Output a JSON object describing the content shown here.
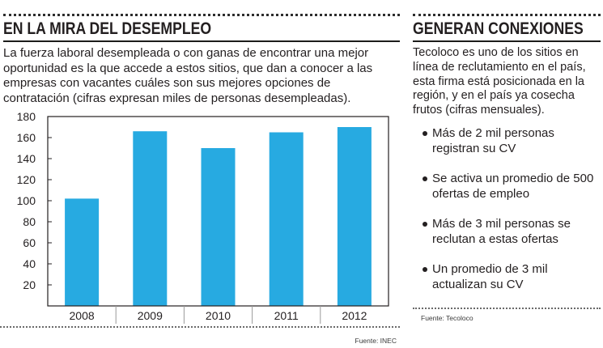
{
  "left_panel": {
    "title": "EN LA MIRA DEL DESEMPLEO",
    "intro": "La fuerza laboral desempleada o con ganas de encontrar una mejor oportunidad es la que accede a estos sitios, que dan a conocer a las empresas con vacantes cuáles son sus mejores opciones de contratación (cifras expresan miles de personas desempleadas).",
    "source": "Fuente: INEC"
  },
  "right_panel": {
    "title": "GENERAN CONEXIONES",
    "intro": "Tecoloco es uno de los sitios en línea de reclutamiento en el país, esta firma está posicionada en la región, y en el país ya cosecha frutos (cifras mensuales).",
    "bullets": [
      "Más de 2 mil personas registran su CV",
      "Se activa un promedio de 500 ofertas de empleo",
      "Más de 3 mil personas se reclutan a estas ofertas",
      "Un promedio de 3 mil actualizan su CV"
    ],
    "source": "Fuente: Tecoloco"
  },
  "chart_data": {
    "type": "bar",
    "categories": [
      "2008",
      "2009",
      "2010",
      "2011",
      "2012"
    ],
    "values": [
      102,
      166,
      150,
      165,
      170
    ],
    "ylim": [
      0,
      180
    ],
    "yticks": [
      20,
      40,
      60,
      80,
      100,
      120,
      140,
      160,
      180
    ],
    "grid": false,
    "colors": {
      "bar": "#27aae1",
      "axis_box": "#231f20",
      "separator": "#9a9a9a"
    }
  }
}
